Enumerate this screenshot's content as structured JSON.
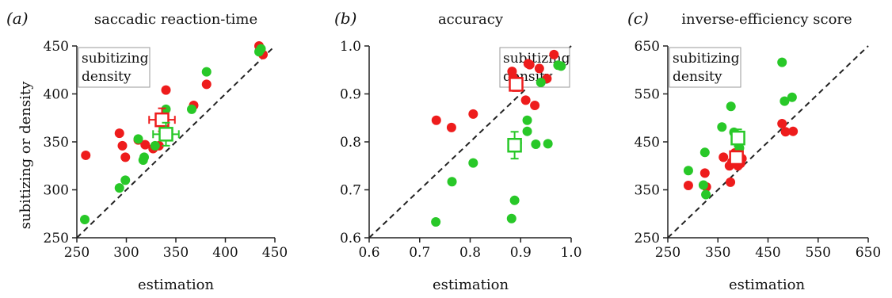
{
  "figure": {
    "y_axis_label": "subitizing or density",
    "colors": {
      "subitizing": "#ee1c1c",
      "density": "#28c828",
      "axis": "#222222"
    }
  },
  "chart_data": [
    {
      "type": "scatter",
      "panel_label": "(a)",
      "title": "saccadic reaction-time",
      "xlabel": "estimation",
      "ylabel": "subitizing or density",
      "xlim": [
        250,
        450
      ],
      "ylim": [
        250,
        450
      ],
      "xticks": [
        "250",
        "300",
        "350",
        "400",
        "450"
      ],
      "yticks": [
        "250",
        "300",
        "350",
        "400",
        "450"
      ],
      "identity_line": true,
      "legend": {
        "position": "top-left",
        "entries": [
          "subitizing",
          "density"
        ]
      },
      "series": [
        {
          "name": "subitizing",
          "color": "#ee1c1c",
          "points": [
            [
              259,
              336
            ],
            [
              293,
              359
            ],
            [
              296,
              346
            ],
            [
              299,
              334
            ],
            [
              312,
              352
            ],
            [
              319,
              347
            ],
            [
              327,
              343
            ],
            [
              333,
              346
            ],
            [
              340,
              404
            ],
            [
              338,
              358
            ],
            [
              368,
              388
            ],
            [
              381,
              410
            ],
            [
              434,
              450
            ],
            [
              438,
              441
            ]
          ]
        },
        {
          "name": "density",
          "color": "#28c828",
          "points": [
            [
              258,
              269
            ],
            [
              293,
              302
            ],
            [
              299,
              310
            ],
            [
              312,
              353
            ],
            [
              317,
              331
            ],
            [
              318,
              334
            ],
            [
              329,
              346
            ],
            [
              340,
              384
            ],
            [
              366,
              384
            ],
            [
              381,
              423
            ],
            [
              434,
              444
            ],
            [
              436,
              447
            ]
          ]
        }
      ],
      "means": [
        {
          "series": "subitizing",
          "x": 336,
          "y": 373,
          "xerr": 13,
          "yerr": 12
        },
        {
          "series": "density",
          "x": 340,
          "y": 358,
          "xerr": 13,
          "yerr": 12
        }
      ]
    },
    {
      "type": "scatter",
      "panel_label": "(b)",
      "title": "accuracy",
      "xlabel": "estimation",
      "ylabel": "",
      "xlim": [
        0.6,
        1.0
      ],
      "ylim": [
        0.6,
        1.0
      ],
      "xticks": [
        "0.6",
        "0.7",
        "0.8",
        "0.9",
        "1.0"
      ],
      "yticks": [
        "0.6",
        "0.7",
        "0.8",
        "0.9",
        "1.0"
      ],
      "identity_line": true,
      "legend": {
        "position": "top-right",
        "entries": [
          "subitizing",
          "density"
        ]
      },
      "series": [
        {
          "name": "subitizing",
          "color": "#ee1c1c",
          "points": [
            [
              0.733,
              0.845
            ],
            [
              0.763,
              0.83
            ],
            [
              0.806,
              0.858
            ],
            [
              0.883,
              0.947
            ],
            [
              0.885,
              0.934
            ],
            [
              0.91,
              0.887
            ],
            [
              0.915,
              0.963
            ],
            [
              0.918,
              0.961
            ],
            [
              0.928,
              0.876
            ],
            [
              0.937,
              0.953
            ],
            [
              0.952,
              0.932
            ],
            [
              0.966,
              0.982
            ]
          ]
        },
        {
          "name": "density",
          "color": "#28c828",
          "points": [
            [
              0.732,
              0.633
            ],
            [
              0.764,
              0.717
            ],
            [
              0.806,
              0.756
            ],
            [
              0.882,
              0.64
            ],
            [
              0.888,
              0.678
            ],
            [
              0.893,
              0.798
            ],
            [
              0.913,
              0.845
            ],
            [
              0.913,
              0.822
            ],
            [
              0.93,
              0.795
            ],
            [
              0.94,
              0.924
            ],
            [
              0.954,
              0.796
            ],
            [
              0.974,
              0.96
            ],
            [
              0.98,
              0.958
            ]
          ]
        }
      ],
      "means": [
        {
          "series": "subitizing",
          "x": 0.891,
          "y": 0.92,
          "xerr": 0.012,
          "yerr": 0.014
        },
        {
          "series": "density",
          "x": 0.888,
          "y": 0.793,
          "xerr": 0.012,
          "yerr": 0.028
        }
      ]
    },
    {
      "type": "scatter",
      "panel_label": "(c)",
      "title": "inverse-efficiency score",
      "xlabel": "estimation",
      "ylabel": "",
      "xlim": [
        250,
        650
      ],
      "ylim": [
        250,
        650
      ],
      "xticks": [
        "250",
        "350",
        "450",
        "550",
        "650"
      ],
      "yticks": [
        "250",
        "350",
        "450",
        "550",
        "650"
      ],
      "identity_line": true,
      "legend": {
        "position": "top-left",
        "entries": [
          "subitizing",
          "density"
        ]
      },
      "series": [
        {
          "name": "subitizing",
          "color": "#ee1c1c",
          "points": [
            [
              291,
              359
            ],
            [
              324,
              385
            ],
            [
              327,
              356
            ],
            [
              361,
              418
            ],
            [
              373,
              400
            ],
            [
              375,
              366
            ],
            [
              378,
              408
            ],
            [
              383,
              412
            ],
            [
              384,
              427
            ],
            [
              390,
              400
            ],
            [
              395,
              405
            ],
            [
              398,
              415
            ],
            [
              478,
              488
            ],
            [
              485,
              471
            ],
            [
              500,
              472
            ]
          ]
        },
        {
          "name": "density",
          "color": "#28c828",
          "points": [
            [
              291,
              390
            ],
            [
              321,
              360
            ],
            [
              324,
              428
            ],
            [
              326,
              340
            ],
            [
              358,
              481
            ],
            [
              376,
              524
            ],
            [
              382,
              470
            ],
            [
              388,
              450
            ],
            [
              393,
              437
            ],
            [
              478,
              616
            ],
            [
              483,
              535
            ],
            [
              498,
              543
            ]
          ]
        }
      ],
      "means": [
        {
          "series": "subitizing",
          "x": 387,
          "y": 417,
          "xerr": 9,
          "yerr": 14
        },
        {
          "series": "density",
          "x": 390,
          "y": 458,
          "xerr": 9,
          "yerr": 18
        }
      ]
    }
  ]
}
